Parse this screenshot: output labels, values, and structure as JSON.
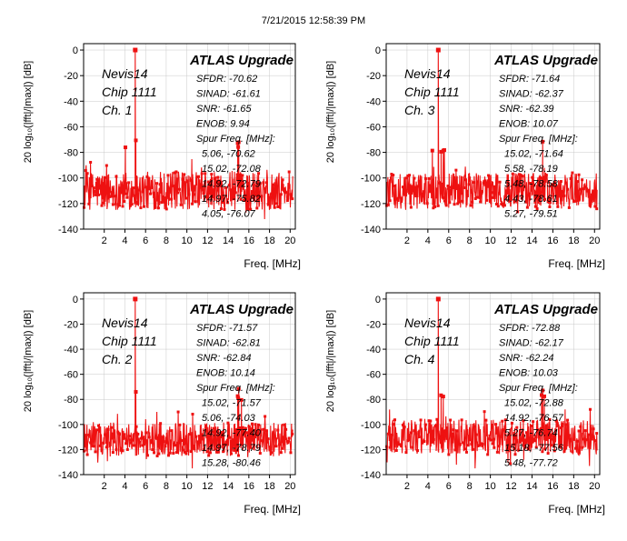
{
  "timestamp": "7/21/2015 12:58:39 PM",
  "colors": {
    "trace": "#ee1111",
    "frame": "#000000",
    "grid": "#c8c8c8"
  },
  "chart_data": [
    {
      "type": "line",
      "title": "ATLAS Upgrade",
      "labels": [
        "Nevis14",
        "Chip 1111",
        "Ch. 1"
      ],
      "stats": [
        "SFDR: -70.62",
        "SINAD: -61.61",
        "SNR: -61.65",
        "ENOB: 9.94",
        "Spur Freq. [MHz]:",
        "5.06, -70.62",
        "15.02, -72.08",
        "14.92, -72.79",
        "14.97, -75.82",
        "4.05, -76.07"
      ],
      "xlabel": "Freq. [MHz]",
      "ylabel": "20 log₁₀(|fft|/|max|)  [dB]",
      "xlim": [
        0,
        20.5
      ],
      "ylim": [
        -140,
        5
      ],
      "xticks": [
        2,
        4,
        6,
        8,
        10,
        12,
        14,
        16,
        18,
        20
      ],
      "yticks": [
        0,
        -20,
        -40,
        -60,
        -80,
        -100,
        -120,
        -140
      ],
      "signal": {
        "freq": 5.0,
        "level": 0
      },
      "spurs": [
        [
          5.06,
          -70.62
        ],
        [
          15.02,
          -72.08
        ],
        [
          14.92,
          -72.79
        ],
        [
          14.97,
          -75.82
        ],
        [
          4.05,
          -76.07
        ]
      ],
      "noise_floor": {
        "min": -135,
        "max": -85,
        "mean": -110
      }
    },
    {
      "type": "line",
      "title": "ATLAS Upgrade",
      "labels": [
        "Nevis14",
        "Chip 1111",
        "Ch. 3"
      ],
      "stats": [
        "SFDR: -71.64",
        "SINAD: -62.37",
        "SNR: -62.39",
        "ENOB: 10.07",
        "Spur Freq. [MHz]:",
        "15.02, -71.64",
        "5.58, -78.19",
        "5.48, -78.58",
        "4.43, -78.61",
        "5.27, -79.51"
      ],
      "xlabel": "Freq. [MHz]",
      "ylabel": "20 log₁₀(|fft|/|max|)  [dB]",
      "xlim": [
        0,
        20.5
      ],
      "ylim": [
        -140,
        5
      ],
      "xticks": [
        2,
        4,
        6,
        8,
        10,
        12,
        14,
        16,
        18,
        20
      ],
      "yticks": [
        0,
        -20,
        -40,
        -60,
        -80,
        -100,
        -120,
        -140
      ],
      "signal": {
        "freq": 5.0,
        "level": 0
      },
      "spurs": [
        [
          15.02,
          -71.64
        ],
        [
          5.58,
          -78.19
        ],
        [
          5.48,
          -78.58
        ],
        [
          4.43,
          -78.61
        ],
        [
          5.27,
          -79.51
        ]
      ],
      "noise_floor": {
        "min": -135,
        "max": -88,
        "mean": -110
      }
    },
    {
      "type": "line",
      "title": "ATLAS Upgrade",
      "labels": [
        "Nevis14",
        "Chip 1111",
        "Ch. 2"
      ],
      "stats": [
        "SFDR: -71.57",
        "SINAD: -62.81",
        "SNR: -62.84",
        "ENOB: 10.14",
        "Spur Freq. [MHz]:",
        "15.02, -71.57",
        "5.06, -74.03",
        "14.92, -77.40",
        "14.97, -78.79",
        "15.28, -80.46"
      ],
      "xlabel": "Freq. [MHz]",
      "ylabel": "20 log₁₀(|fft|/|max|)  [dB]",
      "xlim": [
        0,
        20.5
      ],
      "ylim": [
        -140,
        5
      ],
      "xticks": [
        2,
        4,
        6,
        8,
        10,
        12,
        14,
        16,
        18,
        20
      ],
      "yticks": [
        0,
        -20,
        -40,
        -60,
        -80,
        -100,
        -120,
        -140
      ],
      "signal": {
        "freq": 5.0,
        "level": 0
      },
      "spurs": [
        [
          15.02,
          -71.57
        ],
        [
          5.06,
          -74.03
        ],
        [
          14.92,
          -77.4
        ],
        [
          14.97,
          -78.79
        ],
        [
          15.28,
          -80.46
        ]
      ],
      "noise_floor": {
        "min": -135,
        "max": -90,
        "mean": -112
      }
    },
    {
      "type": "line",
      "title": "ATLAS Upgrade",
      "labels": [
        "Nevis14",
        "Chip 1111",
        "Ch. 4"
      ],
      "stats": [
        "SFDR: -72.88",
        "SINAD: -62.17",
        "SNR: -62.24",
        "ENOB: 10.03",
        "Spur Freq. [MHz]:",
        "15.02, -72.88",
        "14.92, -76.57",
        "5.27, -76.74",
        "15.18, -77.56",
        "5.48, -77.72"
      ],
      "xlabel": "Freq. [MHz]",
      "ylabel": "20 log₁₀(|fft|/|max|)  [dB]",
      "xlim": [
        0,
        20.5
      ],
      "ylim": [
        -140,
        5
      ],
      "xticks": [
        2,
        4,
        6,
        8,
        10,
        12,
        14,
        16,
        18,
        20
      ],
      "yticks": [
        0,
        -20,
        -40,
        -60,
        -80,
        -100,
        -120,
        -140
      ],
      "signal": {
        "freq": 5.0,
        "level": 0
      },
      "spurs": [
        [
          15.02,
          -72.88
        ],
        [
          14.92,
          -76.57
        ],
        [
          5.27,
          -76.74
        ],
        [
          15.18,
          -77.56
        ],
        [
          5.48,
          -77.72
        ]
      ],
      "noise_floor": {
        "min": -135,
        "max": -88,
        "mean": -110
      }
    }
  ]
}
